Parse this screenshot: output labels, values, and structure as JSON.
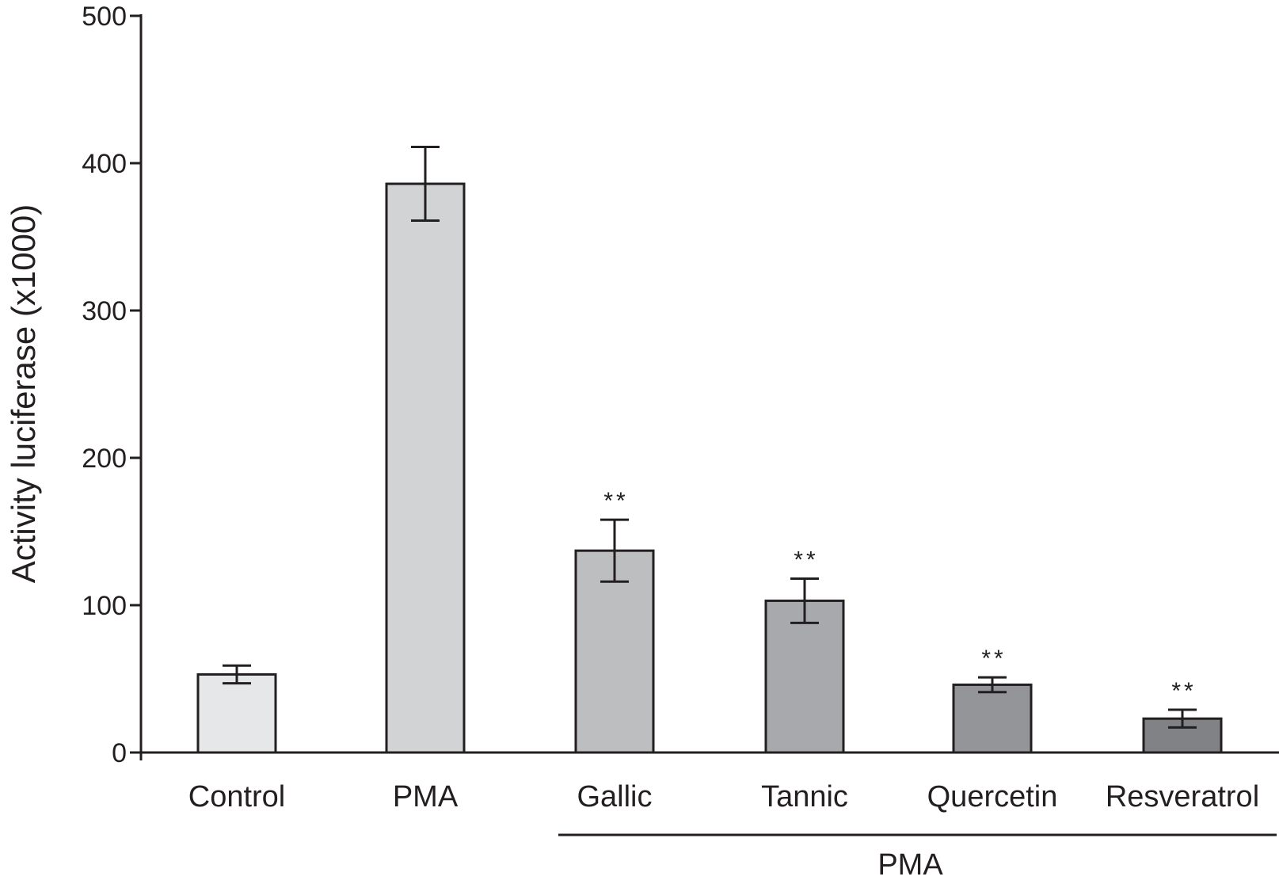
{
  "chart_data": {
    "type": "bar",
    "title": "",
    "xlabel": "",
    "ylabel": "Activity luciferase (x1000)",
    "ylim": [
      0,
      500
    ],
    "yticks": [
      0,
      100,
      200,
      300,
      400,
      500
    ],
    "grid": false,
    "legend": "none",
    "categories": [
      "Control",
      "PMA",
      "Gallic",
      "Tannic",
      "Quercetin",
      "Resveratrol"
    ],
    "values": [
      53,
      386,
      137,
      103,
      46,
      23
    ],
    "error": [
      6,
      25,
      21,
      15,
      5,
      6
    ],
    "significance": [
      "",
      "",
      "**",
      "**",
      "**",
      "**"
    ],
    "bar_colors": [
      "#e6e7e8",
      "#d1d3d4",
      "#bcbec0",
      "#a7a9ac",
      "#939598",
      "#808285"
    ],
    "group_bracket": {
      "label": "PMA",
      "from": "Gallic",
      "to": "Resveratrol"
    }
  }
}
